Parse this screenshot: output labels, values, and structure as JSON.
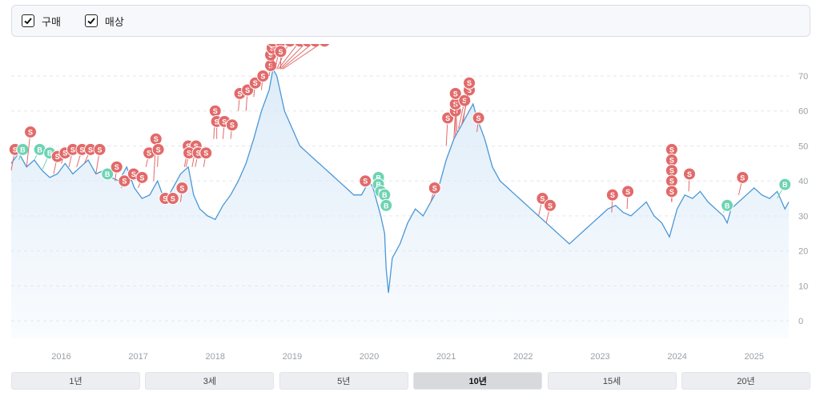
{
  "legend": {
    "items": [
      {
        "label": "구매",
        "checked": true
      },
      {
        "label": "매상",
        "checked": true
      }
    ]
  },
  "colors": {
    "line": "#4a97d6",
    "area": "#dcebf8",
    "sell_marker": "#e26a6a",
    "buy_marker": "#6fd3b3",
    "grid": "#e3e6ea",
    "axis_text": "#9aa0a6"
  },
  "range_buttons": [
    {
      "label": "1년",
      "active": false
    },
    {
      "label": "3세",
      "active": false
    },
    {
      "label": "5년",
      "active": false
    },
    {
      "label": "10년",
      "active": true
    },
    {
      "label": "15세",
      "active": false
    },
    {
      "label": "20년",
      "active": false
    }
  ],
  "chart_data": {
    "type": "line",
    "title": "",
    "xlabel": "",
    "ylabel": "",
    "ylim": [
      -5,
      78
    ],
    "xlim": [
      2015.35,
      2025.45
    ],
    "grid": true,
    "y_ticks": [
      0,
      10,
      20,
      30,
      40,
      50,
      60,
      70
    ],
    "x_ticks": [
      {
        "value": 2016,
        "label": "2016"
      },
      {
        "value": 2017,
        "label": "2017"
      },
      {
        "value": 2018,
        "label": "2018"
      },
      {
        "value": 2019,
        "label": "2019"
      },
      {
        "value": 2020,
        "label": "2020"
      },
      {
        "value": 2021,
        "label": "2021"
      },
      {
        "value": 2022,
        "label": "2022"
      },
      {
        "value": 2023,
        "label": "2023"
      },
      {
        "value": 2024,
        "label": "2024"
      },
      {
        "value": 2025,
        "label": "2025"
      }
    ],
    "series": [
      {
        "x": [
          2015.35,
          2015.45,
          2015.55,
          2015.65,
          2015.75,
          2015.85,
          2015.95,
          2016.05,
          2016.15,
          2016.25,
          2016.35,
          2016.45,
          2016.55,
          2016.65,
          2016.75,
          2016.85,
          2016.95,
          2017.05,
          2017.15,
          2017.25,
          2017.35,
          2017.45,
          2017.55,
          2017.65,
          2017.72,
          2017.8,
          2017.9,
          2018.0,
          2018.1,
          2018.2,
          2018.3,
          2018.4,
          2018.5,
          2018.6,
          2018.7,
          2018.75,
          2018.8,
          2018.9,
          2019.0,
          2019.1,
          2019.2,
          2019.3,
          2019.4,
          2019.5,
          2019.6,
          2019.7,
          2019.8,
          2019.9,
          2020.0,
          2020.05,
          2020.1,
          2020.15,
          2020.2,
          2020.22,
          2020.25,
          2020.3,
          2020.4,
          2020.5,
          2020.6,
          2020.7,
          2020.8,
          2020.9,
          2021.0,
          2021.1,
          2021.2,
          2021.3,
          2021.35,
          2021.4,
          2021.5,
          2021.6,
          2021.7,
          2021.8,
          2021.9,
          2022.0,
          2022.1,
          2022.2,
          2022.3,
          2022.4,
          2022.5,
          2022.6,
          2022.7,
          2022.8,
          2022.9,
          2023.0,
          2023.1,
          2023.2,
          2023.3,
          2023.4,
          2023.5,
          2023.6,
          2023.7,
          2023.8,
          2023.9,
          2024.0,
          2024.1,
          2024.2,
          2024.3,
          2024.4,
          2024.5,
          2024.6,
          2024.65,
          2024.7,
          2024.8,
          2024.9,
          2025.0,
          2025.1,
          2025.2,
          2025.3,
          2025.4,
          2025.45
        ],
        "y": [
          45,
          48,
          44,
          46,
          43,
          41,
          42,
          45,
          42,
          44,
          46,
          42,
          43,
          41,
          40,
          44,
          38,
          35,
          36,
          40,
          34,
          38,
          42,
          44,
          36,
          32,
          30,
          29,
          33,
          36,
          40,
          45,
          52,
          60,
          66,
          72,
          70,
          60,
          55,
          50,
          48,
          46,
          44,
          42,
          40,
          38,
          36,
          36,
          40,
          38,
          34,
          30,
          25,
          15,
          8,
          18,
          22,
          28,
          32,
          30,
          34,
          38,
          46,
          52,
          56,
          60,
          62,
          58,
          52,
          44,
          40,
          38,
          36,
          34,
          32,
          30,
          28,
          26,
          24,
          22,
          24,
          26,
          28,
          30,
          32,
          33,
          31,
          30,
          32,
          34,
          30,
          28,
          24,
          32,
          36,
          35,
          37,
          34,
          32,
          30,
          28,
          32,
          34,
          36,
          38,
          36,
          35,
          37,
          32,
          34
        ]
      }
    ],
    "markers": [
      {
        "type": "S",
        "x": 2015.35,
        "y": 43,
        "label_x": 2015.4,
        "label_y": 49
      },
      {
        "type": "B",
        "x": 2015.45,
        "y": 46,
        "label_x": 2015.5,
        "label_y": 49
      },
      {
        "type": "S",
        "x": 2015.55,
        "y": 44,
        "label_x": 2015.6,
        "label_y": 54
      },
      {
        "type": "B",
        "x": 2015.65,
        "y": 46,
        "label_x": 2015.72,
        "label_y": 49
      },
      {
        "type": "B",
        "x": 2015.75,
        "y": 43,
        "label_x": 2015.85,
        "label_y": 48
      },
      {
        "type": "S",
        "x": 2015.9,
        "y": 42,
        "label_x": 2015.95,
        "label_y": 47
      },
      {
        "type": "S",
        "x": 2016.0,
        "y": 45,
        "label_x": 2016.05,
        "label_y": 48
      },
      {
        "type": "S",
        "x": 2016.1,
        "y": 44,
        "label_x": 2016.15,
        "label_y": 49
      },
      {
        "type": "S",
        "x": 2016.2,
        "y": 44,
        "label_x": 2016.27,
        "label_y": 49
      },
      {
        "type": "S",
        "x": 2016.3,
        "y": 45,
        "label_x": 2016.38,
        "label_y": 49
      },
      {
        "type": "S",
        "x": 2016.45,
        "y": 42,
        "label_x": 2016.5,
        "label_y": 49
      },
      {
        "type": "B",
        "x": 2016.6,
        "y": 42,
        "label_x": 2016.6,
        "label_y": 42
      },
      {
        "type": "S",
        "x": 2016.7,
        "y": 40,
        "label_x": 2016.72,
        "label_y": 44
      },
      {
        "type": "S",
        "x": 2016.78,
        "y": 38,
        "label_x": 2016.82,
        "label_y": 40
      },
      {
        "type": "S",
        "x": 2016.9,
        "y": 40,
        "label_x": 2016.94,
        "label_y": 42
      },
      {
        "type": "S",
        "x": 2017.0,
        "y": 38,
        "label_x": 2017.05,
        "label_y": 41
      },
      {
        "type": "S",
        "x": 2017.1,
        "y": 44,
        "label_x": 2017.14,
        "label_y": 48
      },
      {
        "type": "S",
        "x": 2017.2,
        "y": 40,
        "label_x": 2017.23,
        "label_y": 52
      },
      {
        "type": "S",
        "x": 2017.25,
        "y": 44,
        "label_x": 2017.26,
        "label_y": 49
      },
      {
        "type": "S",
        "x": 2017.3,
        "y": 36,
        "label_x": 2017.35,
        "label_y": 35
      },
      {
        "type": "S",
        "x": 2017.4,
        "y": 36,
        "label_x": 2017.45,
        "label_y": 35
      },
      {
        "type": "S",
        "x": 2017.55,
        "y": 34,
        "label_x": 2017.57,
        "label_y": 38
      },
      {
        "type": "S",
        "x": 2017.6,
        "y": 44,
        "label_x": 2017.65,
        "label_y": 50
      },
      {
        "type": "S",
        "x": 2017.7,
        "y": 44,
        "label_x": 2017.75,
        "label_y": 50
      },
      {
        "type": "S",
        "x": 2017.62,
        "y": 44,
        "label_x": 2017.66,
        "label_y": 48
      },
      {
        "type": "S",
        "x": 2017.74,
        "y": 44,
        "label_x": 2017.78,
        "label_y": 48
      },
      {
        "type": "S",
        "x": 2017.85,
        "y": 44,
        "label_x": 2017.88,
        "label_y": 48
      },
      {
        "type": "S",
        "x": 2017.98,
        "y": 52,
        "label_x": 2018.0,
        "label_y": 60
      },
      {
        "type": "S",
        "x": 2018.02,
        "y": 52,
        "label_x": 2018.02,
        "label_y": 57
      },
      {
        "type": "S",
        "x": 2018.1,
        "y": 52,
        "label_x": 2018.12,
        "label_y": 57
      },
      {
        "type": "S",
        "x": 2018.2,
        "y": 52,
        "label_x": 2018.22,
        "label_y": 56
      },
      {
        "type": "S",
        "x": 2018.3,
        "y": 60,
        "label_x": 2018.32,
        "label_y": 65
      },
      {
        "type": "S",
        "x": 2018.4,
        "y": 60,
        "label_x": 2018.42,
        "label_y": 66
      },
      {
        "type": "S",
        "x": 2018.5,
        "y": 64,
        "label_x": 2018.52,
        "label_y": 68
      },
      {
        "type": "S",
        "x": 2018.6,
        "y": 66,
        "label_x": 2018.62,
        "label_y": 70
      },
      {
        "type": "S",
        "x": 2018.7,
        "y": 70,
        "label_x": 2018.72,
        "label_y": 73
      },
      {
        "type": "S",
        "x": 2018.72,
        "y": 72,
        "label_x": 2018.72,
        "label_y": 76
      },
      {
        "type": "S",
        "x": 2018.74,
        "y": 72,
        "label_x": 2018.74,
        "label_y": 78
      },
      {
        "type": "S",
        "x": 2018.76,
        "y": 72,
        "label_x": 2018.75,
        "label_y": 80
      },
      {
        "type": "S",
        "x": 2018.78,
        "y": 72,
        "label_x": 2018.85,
        "label_y": 80
      },
      {
        "type": "S",
        "x": 2018.8,
        "y": 72,
        "label_x": 2018.97,
        "label_y": 80
      },
      {
        "type": "S",
        "x": 2018.82,
        "y": 72,
        "label_x": 2019.1,
        "label_y": 80
      },
      {
        "type": "S",
        "x": 2018.84,
        "y": 72,
        "label_x": 2019.2,
        "label_y": 80
      },
      {
        "type": "S",
        "x": 2018.86,
        "y": 72,
        "label_x": 2019.3,
        "label_y": 80
      },
      {
        "type": "S",
        "x": 2018.88,
        "y": 72,
        "label_x": 2019.42,
        "label_y": 80
      },
      {
        "type": "S",
        "x": 2018.85,
        "y": 72,
        "label_x": 2018.85,
        "label_y": 77
      },
      {
        "type": "S",
        "x": 2019.95,
        "y": 40,
        "label_x": 2019.95,
        "label_y": 40
      },
      {
        "type": "B",
        "x": 2020.1,
        "y": 40,
        "label_x": 2020.12,
        "label_y": 41
      },
      {
        "type": "B",
        "x": 2020.12,
        "y": 38,
        "label_x": 2020.12,
        "label_y": 39
      },
      {
        "type": "B",
        "x": 2020.14,
        "y": 37,
        "label_x": 2020.15,
        "label_y": 37
      },
      {
        "type": "B",
        "x": 2020.18,
        "y": 36,
        "label_x": 2020.2,
        "label_y": 36
      },
      {
        "type": "B",
        "x": 2020.2,
        "y": 35,
        "label_x": 2020.22,
        "label_y": 33
      },
      {
        "type": "S",
        "x": 2020.8,
        "y": 34,
        "label_x": 2020.85,
        "label_y": 38
      },
      {
        "type": "S",
        "x": 2021.0,
        "y": 50,
        "label_x": 2021.02,
        "label_y": 58
      },
      {
        "type": "S",
        "x": 2021.1,
        "y": 52,
        "label_x": 2021.12,
        "label_y": 60
      },
      {
        "type": "S",
        "x": 2021.12,
        "y": 53,
        "label_x": 2021.12,
        "label_y": 62
      },
      {
        "type": "S",
        "x": 2021.14,
        "y": 54,
        "label_x": 2021.12,
        "label_y": 65
      },
      {
        "type": "S",
        "x": 2021.16,
        "y": 55,
        "label_x": 2021.24,
        "label_y": 63
      },
      {
        "type": "S",
        "x": 2021.2,
        "y": 56,
        "label_x": 2021.3,
        "label_y": 66
      },
      {
        "type": "S",
        "x": 2021.22,
        "y": 57,
        "label_x": 2021.3,
        "label_y": 68
      },
      {
        "type": "S",
        "x": 2021.4,
        "y": 54,
        "label_x": 2021.42,
        "label_y": 58
      },
      {
        "type": "S",
        "x": 2022.2,
        "y": 30,
        "label_x": 2022.25,
        "label_y": 35
      },
      {
        "type": "S",
        "x": 2022.3,
        "y": 28,
        "label_x": 2022.35,
        "label_y": 33
      },
      {
        "type": "S",
        "x": 2023.15,
        "y": 31,
        "label_x": 2023.16,
        "label_y": 36
      },
      {
        "type": "S",
        "x": 2023.35,
        "y": 32,
        "label_x": 2023.36,
        "label_y": 37
      },
      {
        "type": "S",
        "x": 2023.93,
        "y": 34,
        "label_x": 2023.93,
        "label_y": 49
      },
      {
        "type": "S",
        "x": 2023.93,
        "y": 34,
        "label_x": 2023.93,
        "label_y": 46
      },
      {
        "type": "S",
        "x": 2023.93,
        "y": 34,
        "label_x": 2023.93,
        "label_y": 43
      },
      {
        "type": "S",
        "x": 2023.93,
        "y": 34,
        "label_x": 2023.93,
        "label_y": 40
      },
      {
        "type": "S",
        "x": 2023.93,
        "y": 34,
        "label_x": 2023.93,
        "label_y": 37
      },
      {
        "type": "S",
        "x": 2024.15,
        "y": 37,
        "label_x": 2024.16,
        "label_y": 42
      },
      {
        "type": "B",
        "x": 2024.6,
        "y": 31,
        "label_x": 2024.65,
        "label_y": 33
      },
      {
        "type": "S",
        "x": 2024.8,
        "y": 36,
        "label_x": 2024.85,
        "label_y": 41
      },
      {
        "type": "B",
        "x": 2025.3,
        "y": 35,
        "label_x": 2025.4,
        "label_y": 39
      }
    ]
  }
}
